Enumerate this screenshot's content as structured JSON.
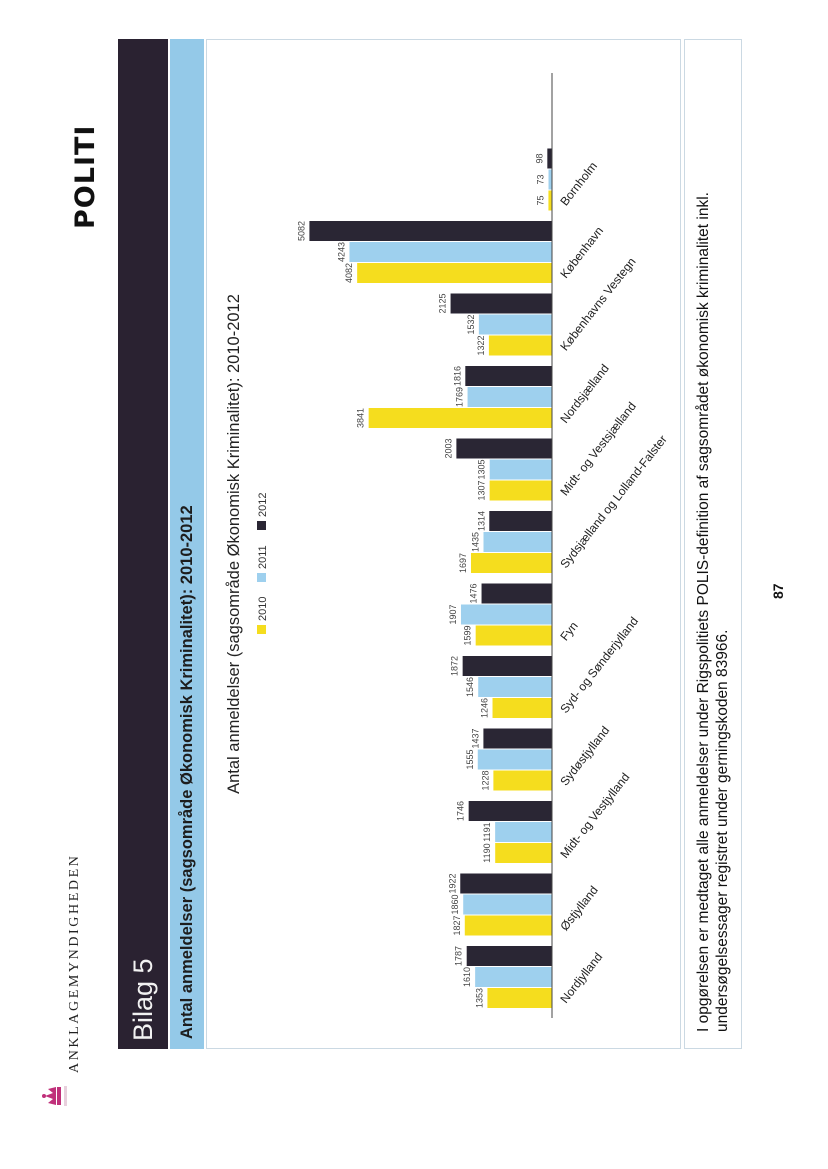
{
  "header": {
    "agency": "ANKLAGEMYNDIGHEDEN",
    "police": "POLITI"
  },
  "title_band": "Bilag 5",
  "subtitle_band": "Antal anmeldelser (sagsområde Økonomisk Kriminalitet): 2010-2012",
  "footer": {
    "line1": "I opgørelsen er medtaget alle anmeldelser under Rigspolitiets POLIS-definition af sagsområdet økonomisk kriminalitet inkl.",
    "line2": "undersøgelsessager registret under gerningskoden 83966."
  },
  "page_number": "87",
  "colors": {
    "title_band": "#2a2231",
    "subtitle_band": "#94c9e8",
    "series_2010": "#f5dd1e",
    "series_2011": "#9ed0ee",
    "series_2012": "#2a2634"
  },
  "chart_data": {
    "type": "bar",
    "title": "Antal anmeldelser (sagsområde Økonomisk Kriminalitet): 2010-2012",
    "categories": [
      "Nordjylland",
      "Østjylland",
      "Midt- og Vestjylland",
      "Sydøstjylland",
      "Syd- og Sønderjylland",
      "Fyn",
      "Sydsjælland og Lolland-Falster",
      "Midt- og Vestsjælland",
      "Nordsjælland",
      "Københavns Vestegn",
      "København",
      "Bornholm"
    ],
    "series": [
      {
        "name": "2010",
        "color": "#f5dd1e",
        "values": [
          1353,
          1827,
          1190,
          1228,
          1246,
          1599,
          1697,
          1307,
          3841,
          1322,
          4082,
          75
        ]
      },
      {
        "name": "2011",
        "color": "#9ed0ee",
        "values": [
          1610,
          1860,
          1191,
          1555,
          1546,
          1907,
          1435,
          1305,
          1769,
          1532,
          4243,
          73
        ]
      },
      {
        "name": "2012",
        "color": "#2a2634",
        "values": [
          1787,
          1922,
          1746,
          1437,
          1872,
          1476,
          1314,
          2003,
          1816,
          2125,
          5082,
          98
        ]
      }
    ],
    "ylim": [
      0,
      5300
    ],
    "grid": false,
    "legend": "top",
    "data_labels": true,
    "orientation": "vertical"
  }
}
